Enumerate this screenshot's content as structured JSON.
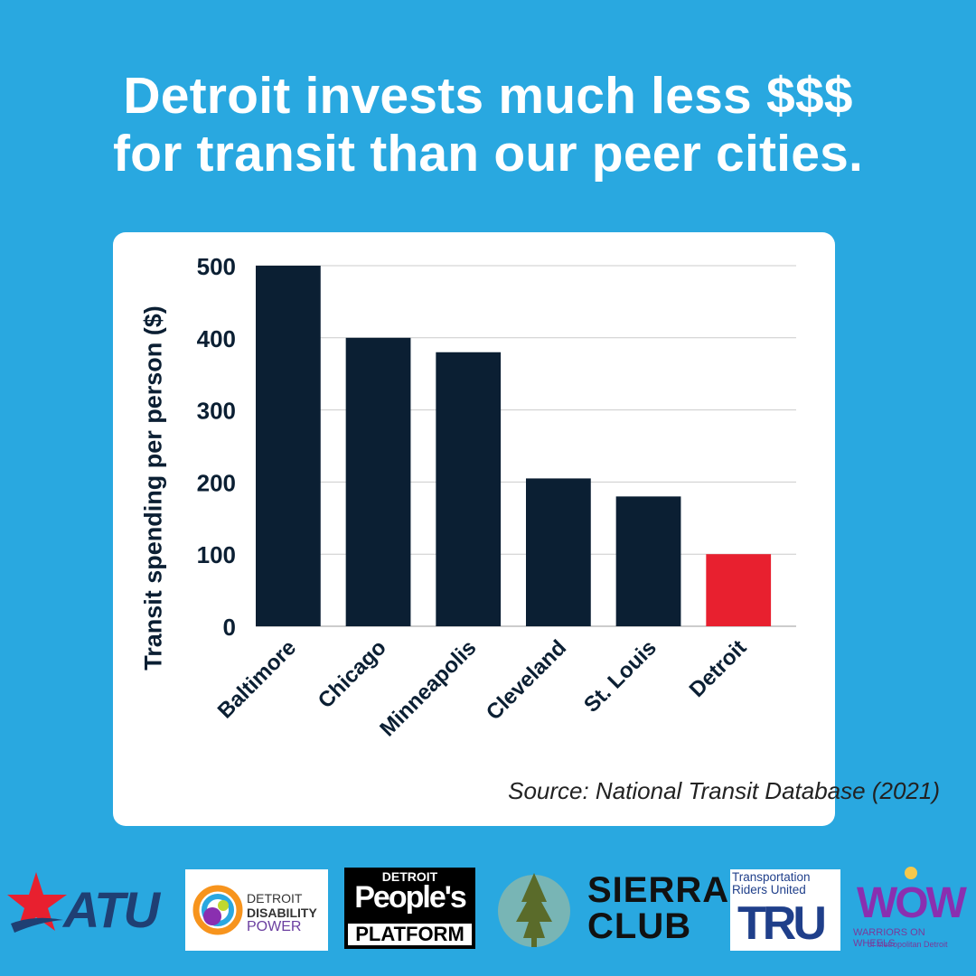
{
  "headline": {
    "line1": "Detroit invests much less $$$",
    "line2": "for transit than our peer cities."
  },
  "chart_data": {
    "type": "bar",
    "categories": [
      "Baltimore",
      "Chicago",
      "Minneapolis",
      "Cleveland",
      "St. Louis",
      "Detroit"
    ],
    "values": [
      500,
      400,
      380,
      205,
      180,
      100
    ],
    "ylabel": "Transit spending per person ($)",
    "ylim": [
      0,
      500
    ],
    "yticks": [
      0,
      100,
      200,
      300,
      400,
      500
    ],
    "grid": true,
    "colors": {
      "default_bar": "#0b1f33",
      "highlight_bar": "#e8202f",
      "highlight_category": "Detroit"
    },
    "source": "Source: National Transit Database (2021)"
  },
  "logos": {
    "atu": "ATU",
    "ddp": [
      "DETROIT",
      "DISABILITY",
      "POWER"
    ],
    "dpp": [
      "DETROIT",
      "People's",
      "PLATFORM"
    ],
    "sierra": [
      "SIERRA",
      "CLUB"
    ],
    "tru": [
      "Transportation",
      "Riders United",
      "TRU"
    ],
    "wow": [
      "WOW",
      "WARRIORS ON WHEELS",
      "of Metropolitan Detroit"
    ]
  }
}
